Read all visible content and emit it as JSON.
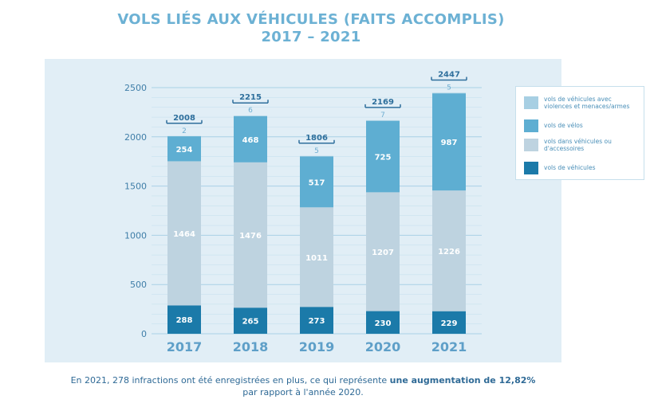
{
  "title": {
    "line1": "VOLS LIÉS AUX VÉHICULES (FAITS ACCOMPLIS)",
    "line2": "2017 – 2021"
  },
  "colors": {
    "panel_bg": "#e1eef6",
    "violence": "#a7cfe3",
    "velos": "#5eaed2",
    "dans": "#bed3e0",
    "vehicules": "#1b7aa9",
    "total_text": "#2e6f9c",
    "grid": "#a9d1e6",
    "axis_text": "#3f7ea8",
    "year_text": "#5e9fc8"
  },
  "legend": [
    {
      "label": "vols de véhicules avec violences et menaces/armes",
      "color": "#a7cfe3"
    },
    {
      "label": "vols de vélos",
      "color": "#5eaed2"
    },
    {
      "label": "vols dans véhicules ou d'accessoires",
      "color": "#bed3e0"
    },
    {
      "label": "vols de véhicules",
      "color": "#1b7aa9"
    }
  ],
  "chart_data": {
    "type": "bar",
    "stacked": true,
    "title": "VOLS LIÉS AUX VÉHICULES (FAITS ACCOMPLIS) 2017 – 2021",
    "categories": [
      "2017",
      "2018",
      "2019",
      "2020",
      "2021"
    ],
    "series": [
      {
        "name": "vols de véhicules",
        "values": [
          288,
          265,
          273,
          230,
          229
        ]
      },
      {
        "name": "vols dans véhicules ou d'accessoires",
        "values": [
          1464,
          1476,
          1011,
          1207,
          1226
        ]
      },
      {
        "name": "vols de vélos",
        "values": [
          254,
          468,
          517,
          725,
          987
        ]
      },
      {
        "name": "vols de véhicules avec violences et menaces/armes",
        "values": [
          2,
          6,
          5,
          7,
          5
        ]
      }
    ],
    "totals": [
      2008,
      2215,
      1806,
      2169,
      2447
    ],
    "yticks": [
      0,
      500,
      1000,
      1500,
      2000,
      2500
    ],
    "ylim": [
      0,
      2500
    ],
    "xlabel": "",
    "ylabel": "",
    "grid": true,
    "legend_position": "right"
  },
  "caption": {
    "part1": "En 2021, 278 infractions ont été enregistrées en plus, ce qui représente ",
    "bold": "une augmentation de 12,82%",
    "part2": "par rapport à l'année 2020."
  }
}
